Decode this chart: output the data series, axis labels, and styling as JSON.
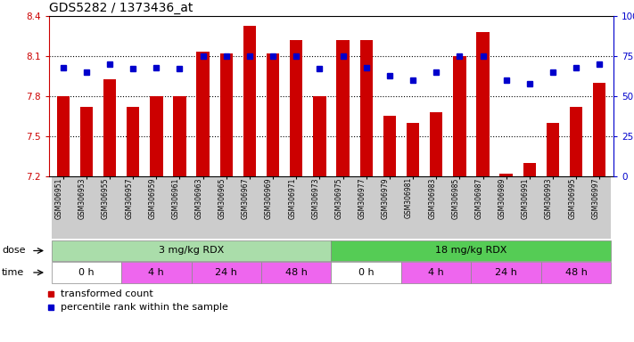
{
  "title": "GDS5282 / 1373436_at",
  "samples": [
    "GSM306951",
    "GSM306953",
    "GSM306955",
    "GSM306957",
    "GSM306959",
    "GSM306961",
    "GSM306963",
    "GSM306965",
    "GSM306967",
    "GSM306969",
    "GSM306971",
    "GSM306973",
    "GSM306975",
    "GSM306977",
    "GSM306979",
    "GSM306981",
    "GSM306983",
    "GSM306985",
    "GSM306987",
    "GSM306989",
    "GSM306991",
    "GSM306993",
    "GSM306995",
    "GSM306997"
  ],
  "bar_values": [
    7.8,
    7.72,
    7.93,
    7.72,
    7.8,
    7.8,
    8.13,
    8.12,
    8.33,
    8.12,
    8.22,
    7.8,
    8.22,
    8.22,
    7.65,
    7.6,
    7.68,
    8.1,
    8.28,
    7.22,
    7.3,
    7.6,
    7.72,
    7.9
  ],
  "dot_values": [
    68,
    65,
    70,
    67,
    68,
    67,
    75,
    75,
    75,
    75,
    75,
    67,
    75,
    68,
    63,
    60,
    65,
    75,
    75,
    60,
    58,
    65,
    68,
    70
  ],
  "bar_color": "#cc0000",
  "dot_color": "#0000cc",
  "ylim_left": [
    7.2,
    8.4
  ],
  "ylim_right": [
    0,
    100
  ],
  "yticks_left": [
    7.2,
    7.5,
    7.8,
    8.1,
    8.4
  ],
  "yticks_right": [
    0,
    25,
    50,
    75,
    100
  ],
  "ytick_labels_right": [
    "0",
    "25",
    "50",
    "75",
    "100%"
  ],
  "hlines": [
    7.5,
    7.8,
    8.1
  ],
  "dose_groups": [
    {
      "label": "3 mg/kg RDX",
      "start": 0,
      "end": 12,
      "color": "#aaddaa"
    },
    {
      "label": "18 mg/kg RDX",
      "start": 12,
      "end": 24,
      "color": "#55cc55"
    }
  ],
  "time_groups": [
    {
      "label": "0 h",
      "start": 0,
      "end": 3,
      "color": "#ffffff"
    },
    {
      "label": "4 h",
      "start": 3,
      "end": 6,
      "color": "#ee66ee"
    },
    {
      "label": "24 h",
      "start": 6,
      "end": 9,
      "color": "#ee66ee"
    },
    {
      "label": "48 h",
      "start": 9,
      "end": 12,
      "color": "#ee66ee"
    },
    {
      "label": "0 h",
      "start": 12,
      "end": 15,
      "color": "#ffffff"
    },
    {
      "label": "4 h",
      "start": 15,
      "end": 18,
      "color": "#ee66ee"
    },
    {
      "label": "24 h",
      "start": 18,
      "end": 21,
      "color": "#ee66ee"
    },
    {
      "label": "48 h",
      "start": 21,
      "end": 24,
      "color": "#ee66ee"
    }
  ],
  "legend_bar_label": "transformed count",
  "legend_dot_label": "percentile rank within the sample",
  "title_fontsize": 10,
  "left_color": "#cc0000",
  "right_color": "#0000cc",
  "xtick_bg_color": "#cccccc",
  "dose_border_color": "#888888",
  "time_border_color": "#888888"
}
